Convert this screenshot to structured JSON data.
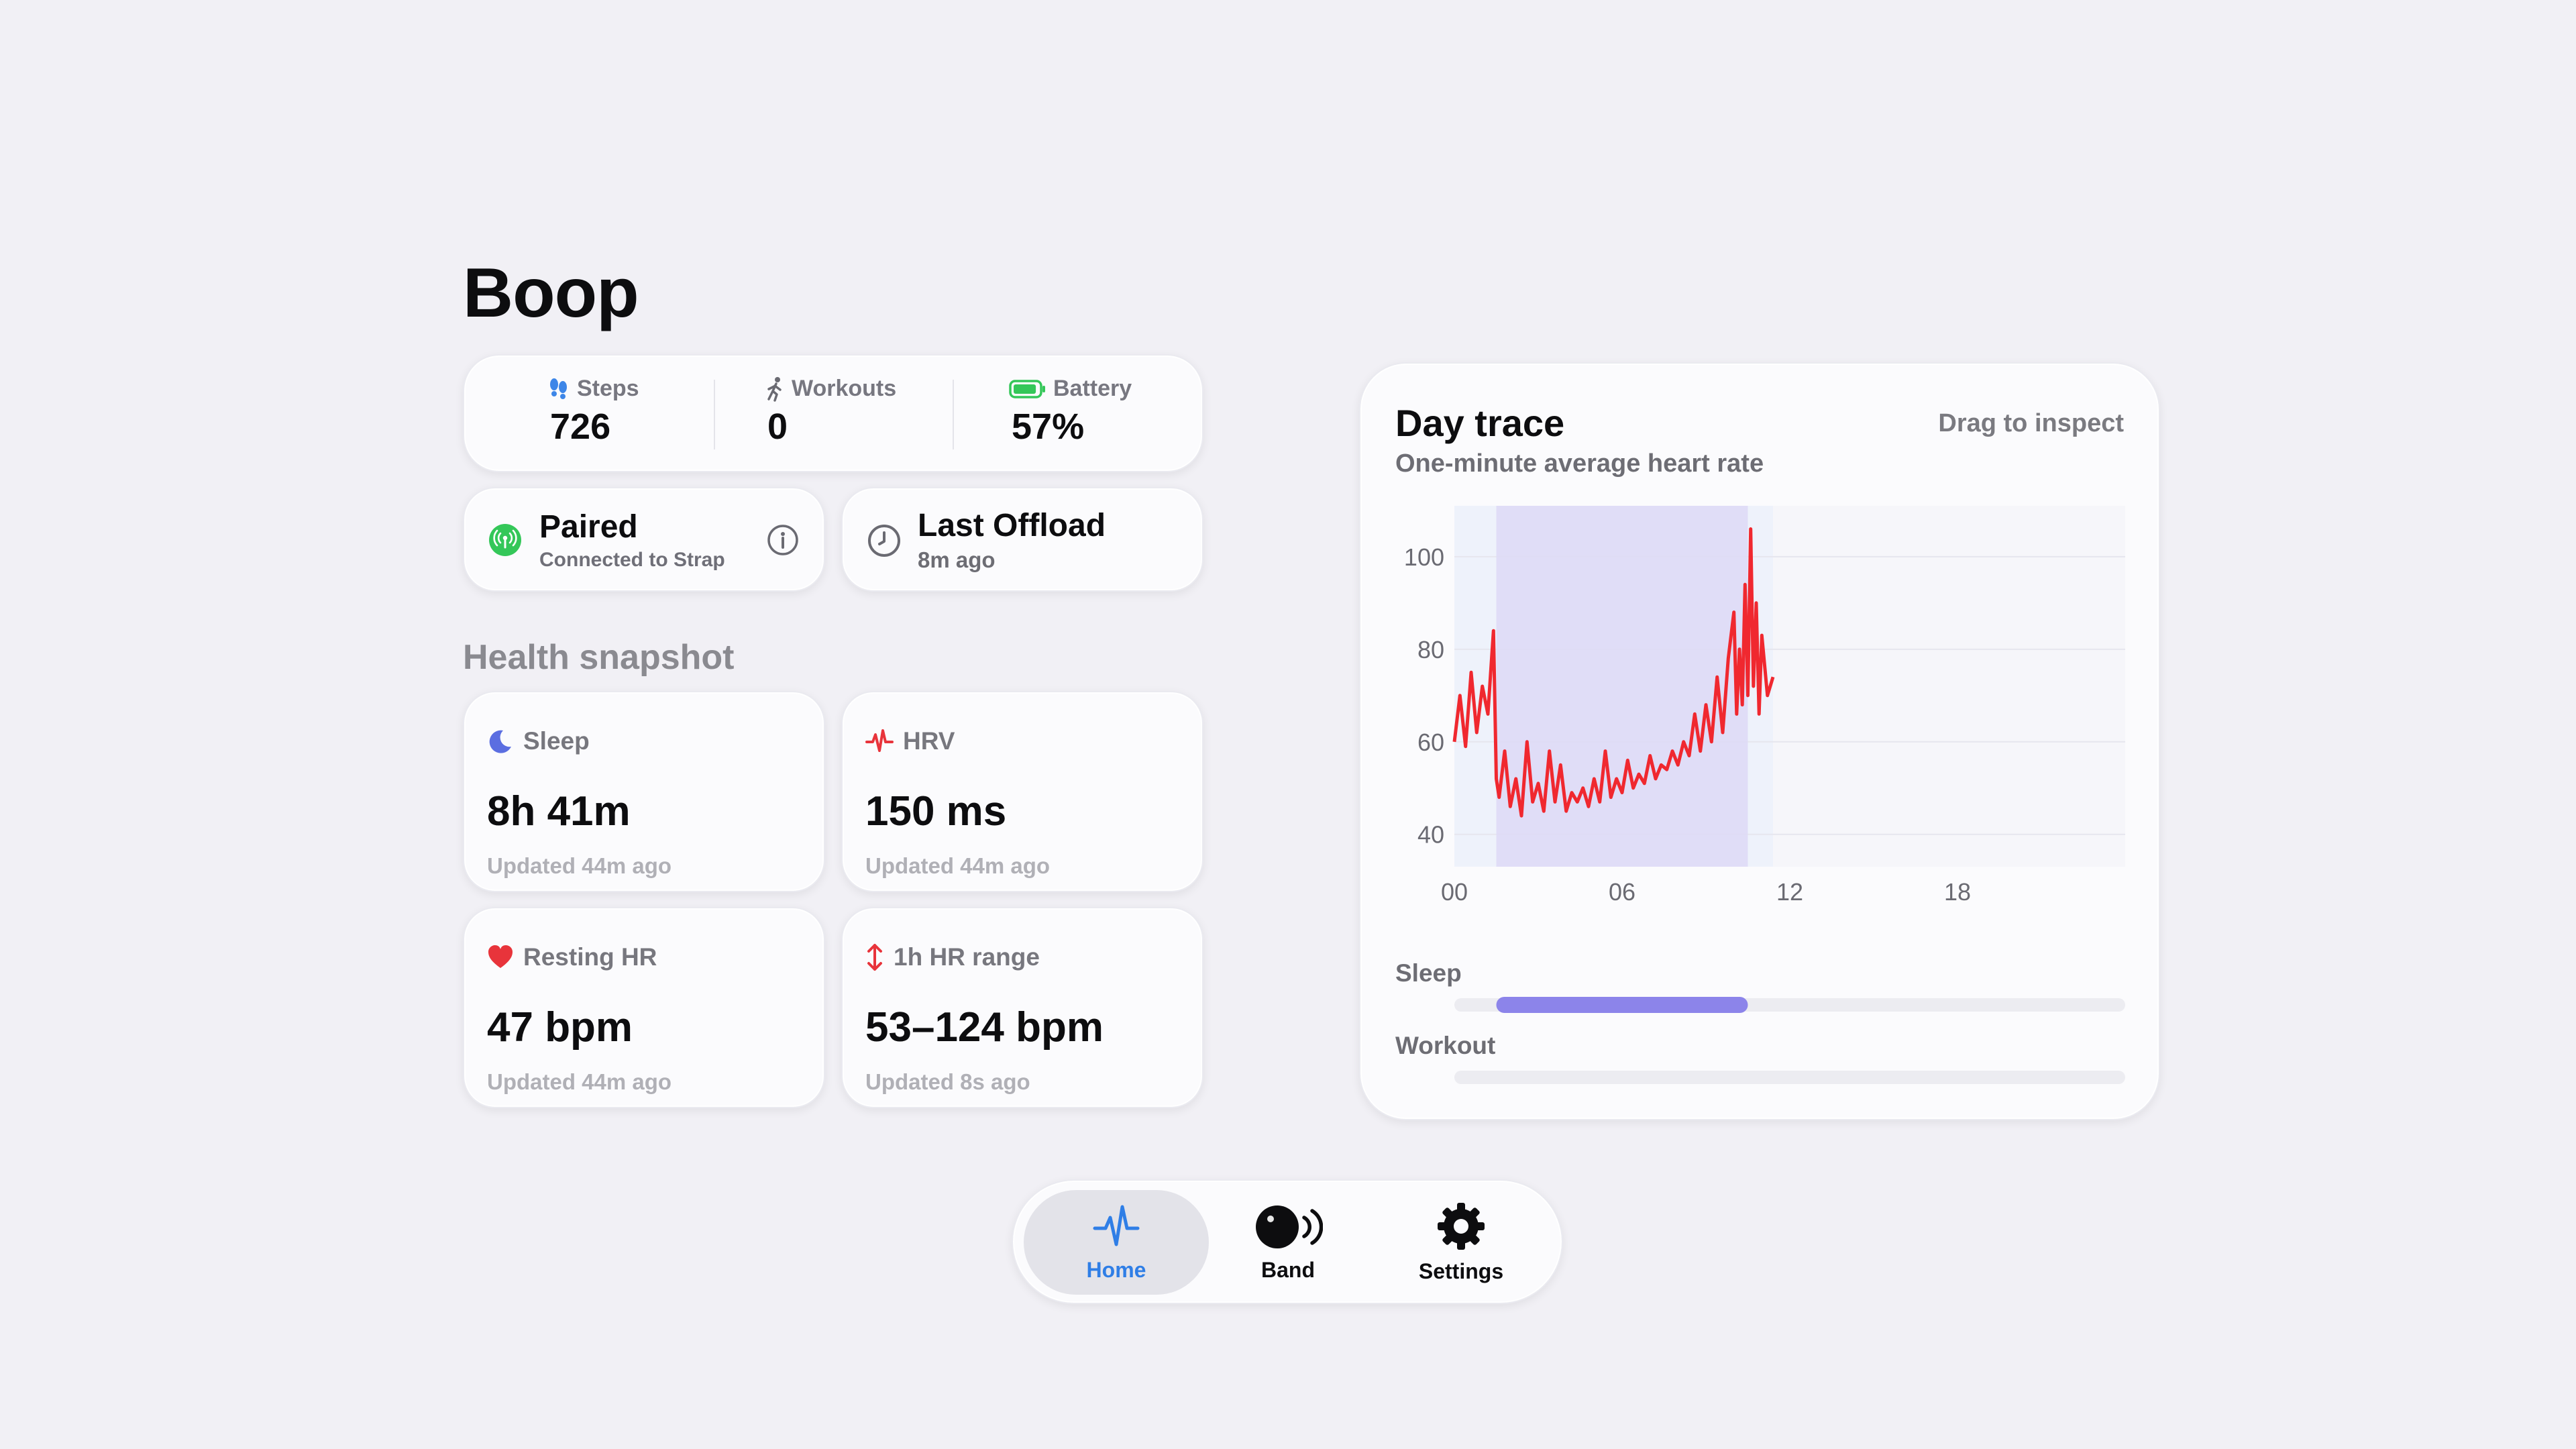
{
  "app_title": "Boop",
  "stats": [
    {
      "label": "Steps",
      "value": "726",
      "icon": "footprints-icon"
    },
    {
      "label": "Workouts",
      "value": "0",
      "icon": "running-figure-icon"
    },
    {
      "label": "Battery",
      "value": "57%",
      "icon": "battery-icon",
      "level_fraction": 0.57
    }
  ],
  "pairing": {
    "title": "Paired",
    "subtitle": "Connected to Strap",
    "icon": "antenna-icon",
    "status_color": "#34c759"
  },
  "offload": {
    "title": "Last Offload",
    "subtitle": "8m ago",
    "icon": "clock-icon"
  },
  "health_section_title": "Health snapshot",
  "metrics": [
    {
      "label": "Sleep",
      "value": "8h 41m",
      "updated": "Updated 44m ago",
      "icon": "moon-icon",
      "icon_color": "#5b6ee1"
    },
    {
      "label": "HRV",
      "value": "150 ms",
      "updated": "Updated 44m ago",
      "icon": "pulse-icon",
      "icon_color": "#e8343b"
    },
    {
      "label": "Resting HR",
      "value": "47 bpm",
      "updated": "Updated 44m ago",
      "icon": "heart-icon",
      "icon_color": "#e8343b"
    },
    {
      "label": "1h HR range",
      "value": "53–124 bpm",
      "updated": "Updated 8s ago",
      "icon": "range-arrows-icon",
      "icon_color": "#e8343b"
    }
  ],
  "trace": {
    "title": "Day trace",
    "subtitle": "One-minute average heart rate",
    "hint": "Drag to inspect",
    "sleep_label": "Sleep",
    "workout_label": "Workout"
  },
  "chart_data": {
    "type": "line",
    "x_unit": "hour of day",
    "xlim": [
      0,
      24
    ],
    "ylim": [
      33,
      111
    ],
    "x_ticks": [
      "00",
      "06",
      "12",
      "18"
    ],
    "y_ticks": [
      "40",
      "60",
      "80",
      "100"
    ],
    "series_color": "#f0282f",
    "sleep_window": {
      "start": 1.5,
      "end": 10.5
    },
    "data_coverage": {
      "start": 0,
      "end": 11.4
    },
    "series": [
      {
        "x": [
          0.0,
          0.2,
          0.4,
          0.6,
          0.8,
          1.0,
          1.2,
          1.4,
          1.5,
          1.6,
          1.8,
          2.0,
          2.2,
          2.4,
          2.6,
          2.8,
          3.0,
          3.2,
          3.4,
          3.6,
          3.8,
          4.0,
          4.2,
          4.4,
          4.6,
          4.8,
          5.0,
          5.2,
          5.4,
          5.6,
          5.8,
          6.0,
          6.2,
          6.4,
          6.6,
          6.8,
          7.0,
          7.2,
          7.4,
          7.6,
          7.8,
          8.0,
          8.2,
          8.4,
          8.6,
          8.8,
          9.0,
          9.2,
          9.4,
          9.6,
          9.8,
          10.0,
          10.1,
          10.2,
          10.3,
          10.4,
          10.5,
          10.6,
          10.7,
          10.8,
          10.9,
          11.0,
          11.2,
          11.4
        ],
        "y": [
          60,
          70,
          59,
          75,
          62,
          72,
          66,
          84,
          52,
          48,
          58,
          46,
          52,
          44,
          60,
          47,
          51,
          45,
          58,
          47,
          55,
          45,
          49,
          47,
          50,
          46,
          52,
          47,
          58,
          48,
          52,
          49,
          56,
          50,
          53,
          51,
          57,
          52,
          55,
          54,
          58,
          55,
          60,
          57,
          66,
          58,
          68,
          60,
          74,
          62,
          78,
          88,
          66,
          80,
          68,
          94,
          70,
          106,
          72,
          90,
          66,
          83,
          70,
          74
        ]
      }
    ]
  },
  "tabs": [
    {
      "label": "Home",
      "icon": "heartbeat-icon",
      "active": true
    },
    {
      "label": "Band",
      "icon": "band-broadcast-icon",
      "active": false
    },
    {
      "label": "Settings",
      "icon": "gear-icon",
      "active": false
    }
  ],
  "accent_color": "#2f7ee6",
  "sleep_bar_color": "#8c84ea"
}
